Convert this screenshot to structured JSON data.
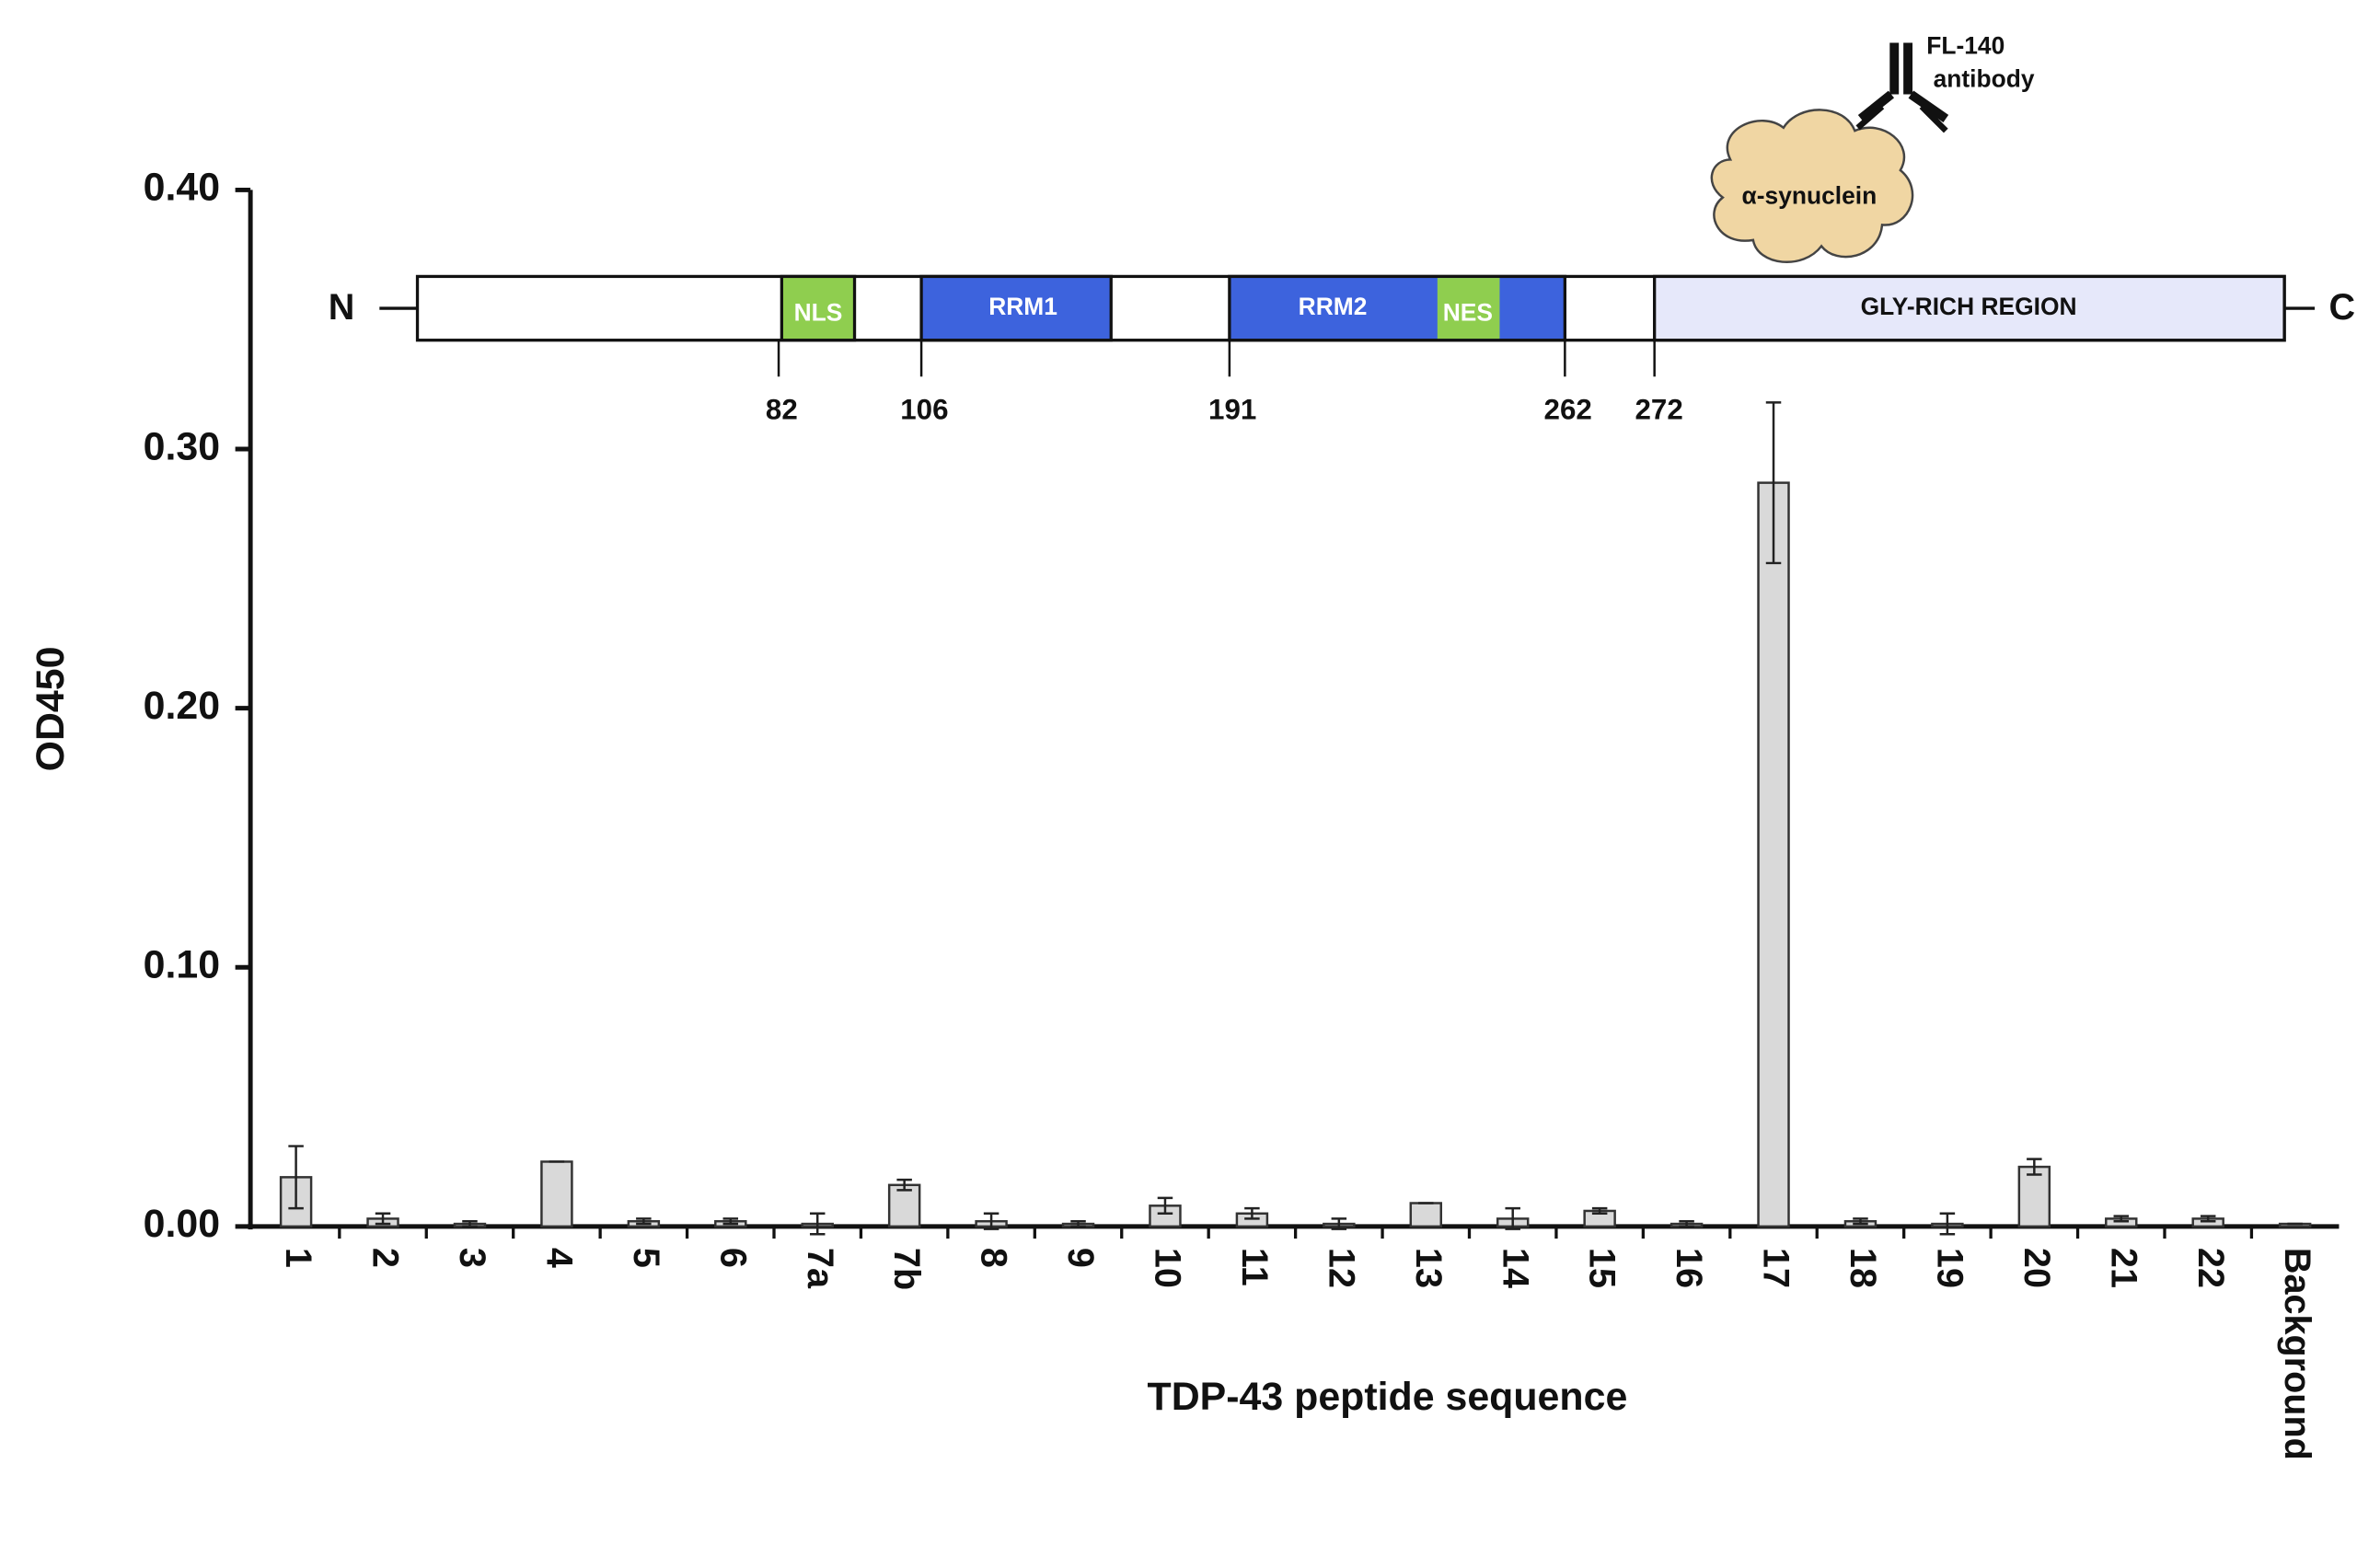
{
  "chart_data": {
    "type": "bar",
    "x_label": "TDP-43 peptide sequence",
    "y_label": "OD450",
    "categories": [
      "1",
      "2",
      "3",
      "4",
      "5",
      "6",
      "7a",
      "7b",
      "8",
      "9",
      "10",
      "11",
      "12",
      "13",
      "14",
      "15",
      "16",
      "17",
      "18",
      "19",
      "20",
      "21",
      "22",
      "Background"
    ],
    "values": [
      0.019,
      0.003,
      0.001,
      0.025,
      0.002,
      0.002,
      0.001,
      0.016,
      0.002,
      0.001,
      0.008,
      0.005,
      0.001,
      0.009,
      0.003,
      0.006,
      0.001,
      0.287,
      0.002,
      0.001,
      0.023,
      0.003,
      0.003,
      0.001
    ],
    "errors": [
      0.012,
      0.002,
      0.001,
      0,
      0.001,
      0.001,
      0.004,
      0.002,
      0.003,
      0.001,
      0.003,
      0.002,
      0.002,
      0,
      0.004,
      0.001,
      0.001,
      0.031,
      0.001,
      0.004,
      0.003,
      0.001,
      0.001,
      0
    ],
    "color": "#d9d9d9",
    "ylim": [
      0,
      0.4
    ],
    "yticks": [
      {
        "value": 0,
        "label": "0.00"
      },
      {
        "value": 0.1,
        "label": "0.10"
      },
      {
        "value": 0.2,
        "label": "0.20"
      },
      {
        "value": 0.3,
        "label": "0.30"
      },
      {
        "value": 0.4,
        "label": "0.40"
      }
    ],
    "domain_map": {
      "n_label": "N",
      "c_label": "C",
      "regions": [
        "NLS",
        "RRM1",
        "RRM2",
        "NES",
        "GLY-RICH REGION"
      ],
      "positions": [
        82,
        106,
        191,
        262,
        272
      ],
      "cloud_label": "α-synuclein",
      "antibody_label": [
        "FL-140",
        "antibody"
      ]
    }
  }
}
